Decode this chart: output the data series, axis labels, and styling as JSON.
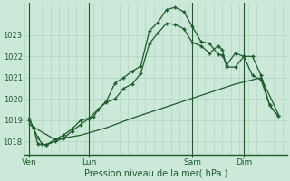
{
  "bg_color": "#cce8d8",
  "grid_color": "#b0d4c0",
  "line_color": "#1a5c28",
  "xlabel": "Pression niveau de la mer( hPa )",
  "ylim": [
    1017.4,
    1024.5
  ],
  "yticks": [
    1018,
    1019,
    1020,
    1021,
    1022,
    1023
  ],
  "day_labels": [
    "Ven",
    "Lun",
    "Sam",
    "Dim"
  ],
  "day_positions": [
    0,
    7,
    19,
    25
  ],
  "xlim": [
    -0.5,
    30
  ],
  "line1_x": [
    0,
    0.5,
    1,
    1.5,
    2,
    3,
    4,
    5,
    6,
    7,
    7.5,
    8,
    9,
    10,
    11,
    12,
    13,
    14,
    15,
    16,
    17,
    18,
    19,
    20,
    21,
    22,
    22.5,
    23,
    24,
    25,
    26,
    27,
    28,
    29
  ],
  "line1_y": [
    1019.1,
    1018.65,
    1018.2,
    1017.9,
    1017.85,
    1018.1,
    1018.3,
    1018.6,
    1019.0,
    1019.1,
    1019.15,
    1019.5,
    1019.9,
    1020.75,
    1021.0,
    1021.3,
    1021.55,
    1023.2,
    1023.6,
    1024.2,
    1024.3,
    1024.1,
    1023.4,
    1022.7,
    1022.6,
    1022.1,
    1022.05,
    1021.6,
    1022.15,
    1022.0,
    1021.1,
    1020.9,
    1019.7,
    1019.2
  ],
  "line2_x": [
    0,
    0.5,
    1,
    2,
    3,
    4,
    5,
    6,
    7,
    8,
    9,
    10,
    11,
    12,
    13,
    14,
    15,
    16,
    17,
    18,
    19,
    20,
    21,
    22,
    22.5,
    23,
    24,
    25,
    26,
    27,
    28,
    29
  ],
  "line2_y": [
    1019.0,
    1018.65,
    1017.9,
    1017.85,
    1018.0,
    1018.15,
    1018.5,
    1018.8,
    1019.1,
    1019.5,
    1019.85,
    1020.0,
    1020.5,
    1020.7,
    1021.2,
    1022.6,
    1023.1,
    1023.55,
    1023.5,
    1023.3,
    1022.65,
    1022.5,
    1022.15,
    1022.5,
    1022.3,
    1021.5,
    1021.5,
    1022.0,
    1022.0,
    1021.1,
    1019.7,
    1019.2
  ],
  "line3_x": [
    0,
    3,
    6,
    9,
    12,
    15,
    18,
    21,
    24,
    27,
    29
  ],
  "line3_y": [
    1018.8,
    1018.1,
    1018.3,
    1018.65,
    1019.1,
    1019.5,
    1019.9,
    1020.3,
    1020.7,
    1021.0,
    1019.3
  ]
}
